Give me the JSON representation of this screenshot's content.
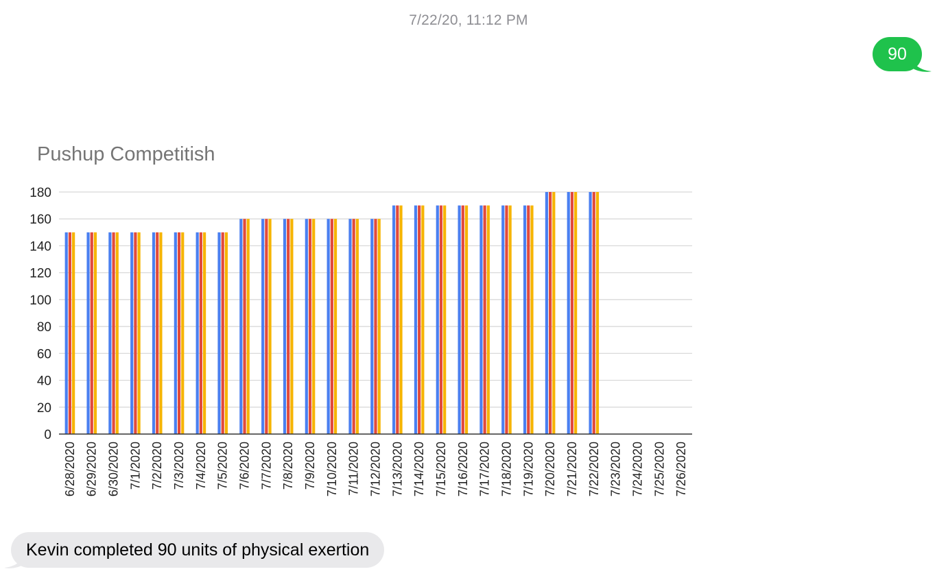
{
  "thread": {
    "timestamp": "7/22/20, 11:12 PM",
    "outgoing_message": "90",
    "incoming_message": "Kevin completed 90 units of physical exertion",
    "colors": {
      "outgoing_bubble": "#1fc24c",
      "incoming_bubble": "#e9e9eb",
      "timestamp_text": "#8e8e93"
    }
  },
  "chart_data": {
    "type": "bar",
    "title": "Pushup Competitish",
    "xlabel": "",
    "ylabel": "",
    "ylim": [
      0,
      180
    ],
    "yticks": [
      0,
      20,
      40,
      60,
      80,
      100,
      120,
      140,
      160,
      180
    ],
    "grid": true,
    "legend": "none",
    "categories": [
      "6/28/2020",
      "6/29/2020",
      "6/30/2020",
      "7/1/2020",
      "7/2/2020",
      "7/3/2020",
      "7/4/2020",
      "7/5/2020",
      "7/6/2020",
      "7/7/2020",
      "7/8/2020",
      "7/9/2020",
      "7/10/2020",
      "7/11/2020",
      "7/12/2020",
      "7/13/2020",
      "7/14/2020",
      "7/15/2020",
      "7/16/2020",
      "7/17/2020",
      "7/18/2020",
      "7/19/2020",
      "7/20/2020",
      "7/21/2020",
      "7/22/2020",
      "7/23/2020",
      "7/24/2020",
      "7/25/2020",
      "7/26/2020"
    ],
    "series": [
      {
        "color": "#4a7ff0",
        "values": [
          150,
          150,
          150,
          150,
          150,
          150,
          150,
          150,
          160,
          160,
          160,
          160,
          160,
          160,
          160,
          170,
          170,
          170,
          170,
          170,
          170,
          170,
          180,
          180,
          180,
          null,
          null,
          null,
          null
        ]
      },
      {
        "color": "#e24a3b",
        "values": [
          150,
          150,
          150,
          150,
          150,
          150,
          150,
          150,
          160,
          160,
          160,
          160,
          160,
          160,
          160,
          170,
          170,
          170,
          170,
          170,
          170,
          170,
          180,
          180,
          180,
          null,
          null,
          null,
          null
        ]
      },
      {
        "color": "#f6b400",
        "values": [
          150,
          150,
          150,
          150,
          150,
          150,
          150,
          150,
          160,
          160,
          160,
          160,
          160,
          160,
          160,
          170,
          170,
          170,
          170,
          170,
          170,
          170,
          180,
          180,
          180,
          null,
          null,
          null,
          null
        ]
      }
    ]
  }
}
